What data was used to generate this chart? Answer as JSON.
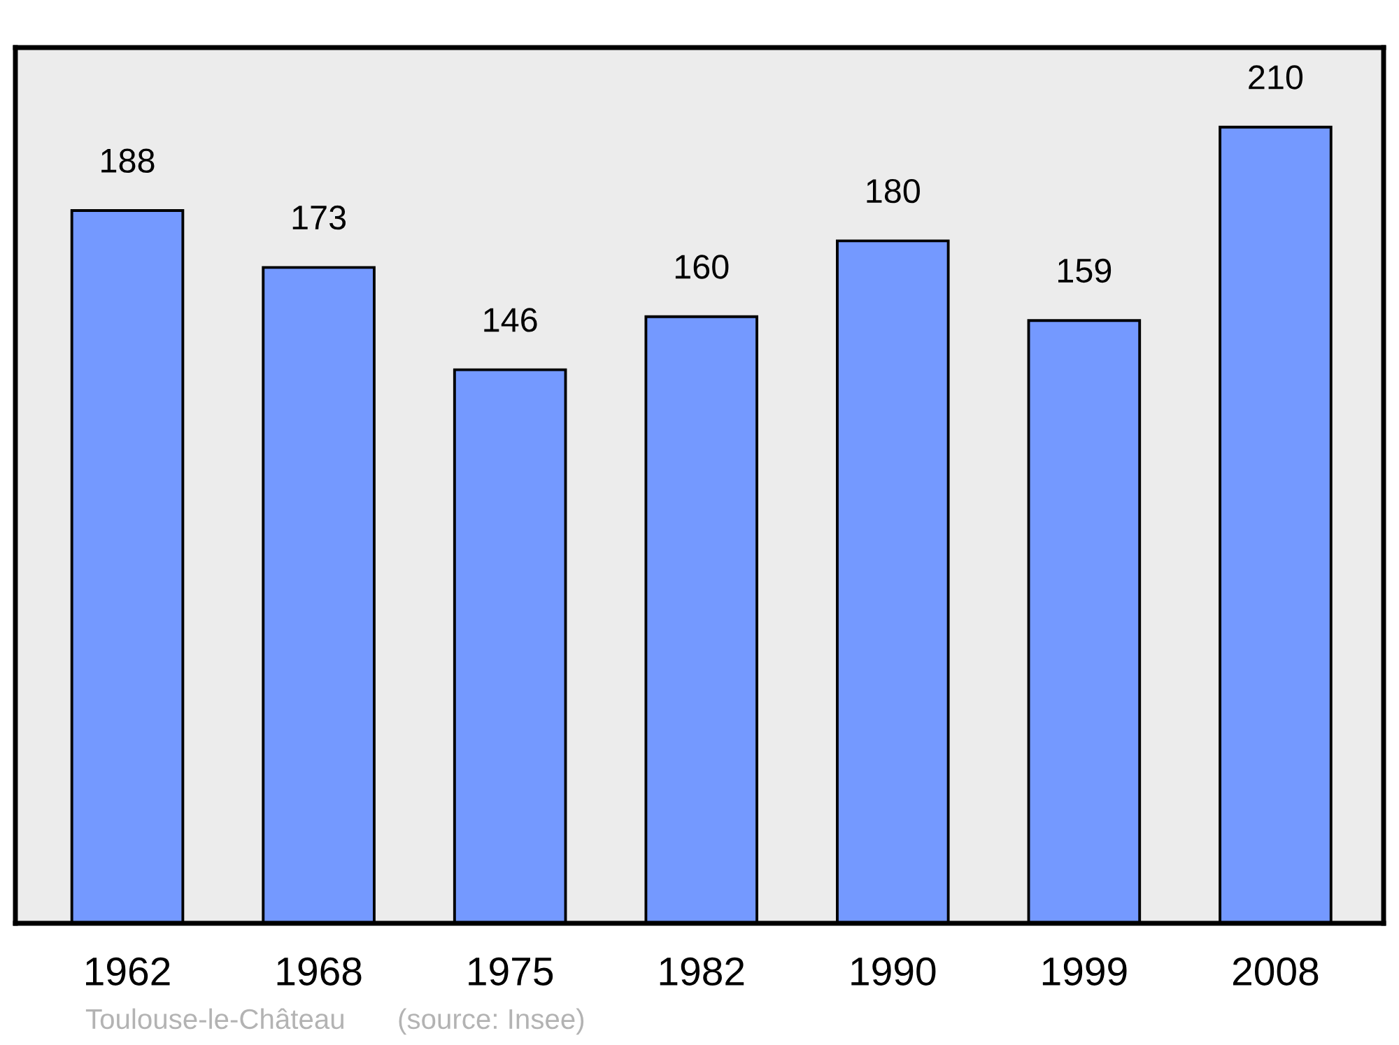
{
  "chart_data": {
    "type": "bar",
    "categories": [
      "1962",
      "1968",
      "1975",
      "1982",
      "1990",
      "1999",
      "2008"
    ],
    "values": [
      188,
      173,
      146,
      160,
      180,
      159,
      210
    ],
    "color": "#7499ff",
    "ylim": [
      0,
      231
    ],
    "data_labels": true,
    "tick_labels": "x",
    "grid": false,
    "legend": false,
    "annotations": [
      "Toulouse-le-Château",
      "(source: Insee)"
    ]
  }
}
